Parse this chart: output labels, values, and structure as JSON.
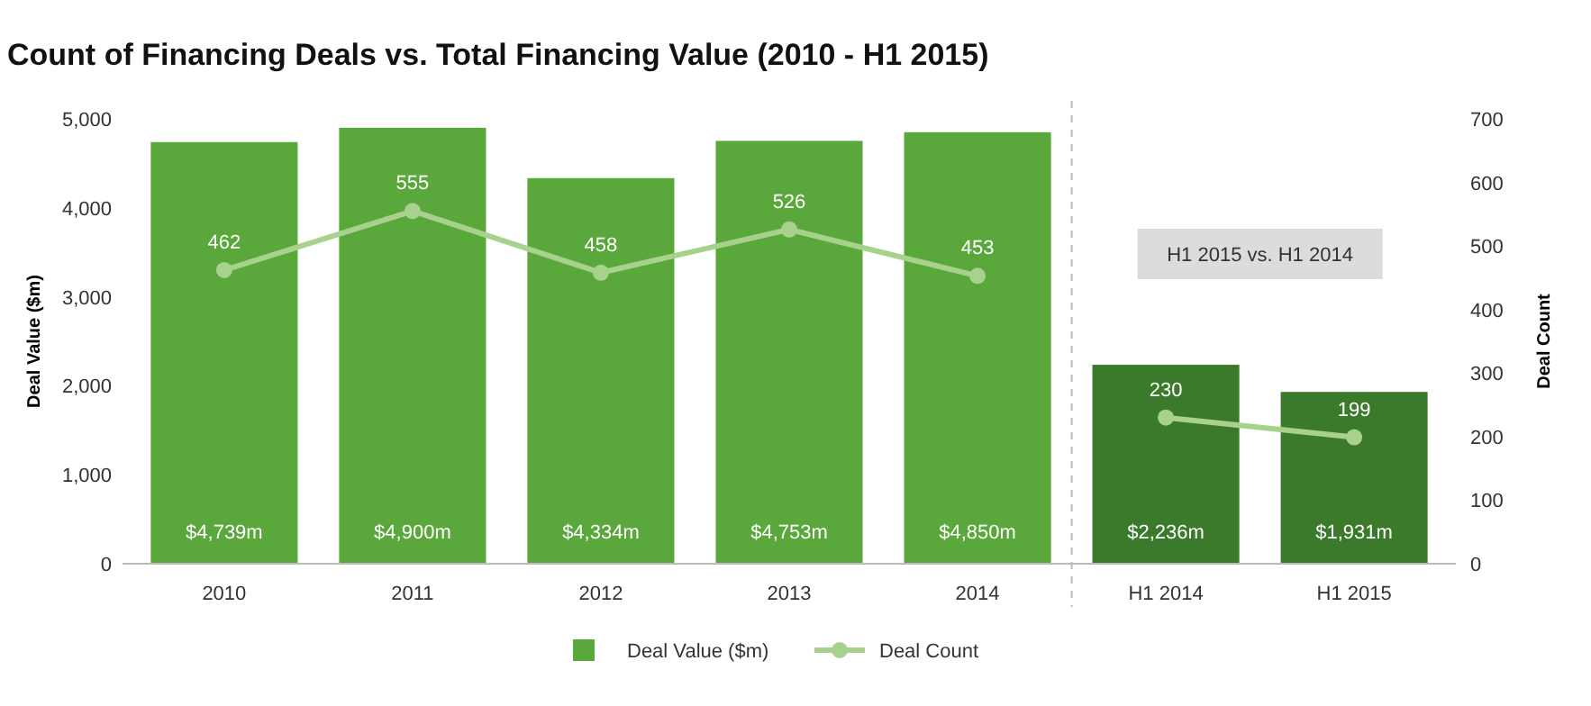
{
  "chart_data": {
    "type": "bar",
    "title": "Count of Financing Deals vs. Total Financing Value (2010 - H1 2015)",
    "ylabel": "Deal Value ($m)",
    "y2label": "Deal Count",
    "categories": [
      "2010",
      "2011",
      "2012",
      "2013",
      "2014",
      "H1 2014",
      "H1 2015"
    ],
    "series": [
      {
        "name": "Deal Value ($m)",
        "color": "#5aa83c",
        "colors": [
          "#5aa83c",
          "#5aa83c",
          "#5aa83c",
          "#5aa83c",
          "#5aa83c",
          "#3b7a2a",
          "#3b7a2a"
        ],
        "values": [
          4739,
          4900,
          4334,
          4753,
          4850,
          2236,
          1931
        ],
        "value_labels": [
          "$4,739m",
          "$4,900m",
          "$4,334m",
          "$4,753m",
          "$4,850m",
          "$2,236m",
          "$1,931m"
        ]
      },
      {
        "name": "Deal Count",
        "type": "line",
        "axis": "y2",
        "color": "#a9d18e",
        "values": [
          462,
          555,
          458,
          526,
          453,
          null,
          null
        ],
        "value_labels": [
          "462",
          "555",
          "458",
          "526",
          "453",
          null,
          null
        ]
      },
      {
        "type": "line",
        "axis": "y2",
        "color": "#a9d18e",
        "values": [
          null,
          null,
          null,
          null,
          null,
          230,
          199
        ],
        "value_labels": [
          null,
          null,
          null,
          null,
          null,
          "230",
          "199"
        ]
      }
    ],
    "ylim": [
      0,
      5000
    ],
    "yticks": [
      0,
      {
        "value": 1000,
        "label": "1,000"
      },
      {
        "value": 2000,
        "label": "2,000"
      },
      {
        "value": 3000,
        "label": "3,000"
      },
      {
        "value": 4000,
        "label": "4,000"
      },
      {
        "value": 5000,
        "label": "5,000"
      }
    ],
    "y2lim": [
      0,
      700
    ],
    "y2ticks": [
      0,
      100,
      200,
      300,
      400,
      500,
      600,
      700
    ],
    "marker": "circle",
    "legend": "bottom",
    "grid": false,
    "annotations": [
      "H1 2015 vs. H1 2014"
    ]
  }
}
